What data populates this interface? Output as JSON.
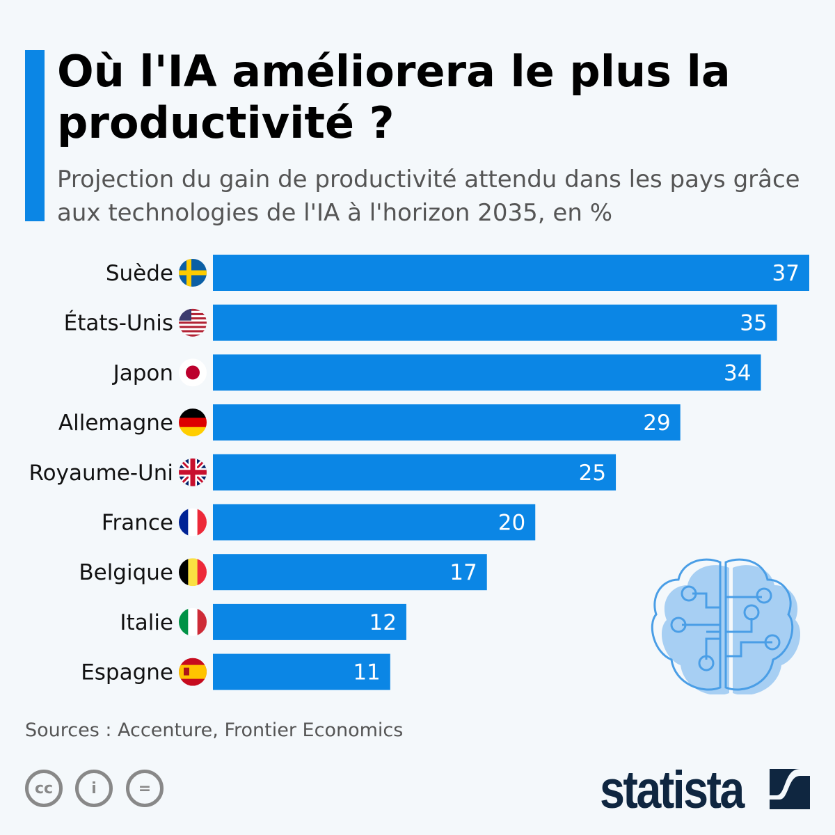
{
  "header": {
    "title": "Où l'IA améliorera le plus la productivité ?",
    "subtitle": "Projection du gain de productivité attendu dans les pays grâce aux technologies de l'IA à l'horizon 2035, en %"
  },
  "chart_data": {
    "type": "bar",
    "orientation": "horizontal",
    "title": "Où l'IA améliorera le plus la productivité ?",
    "subtitle": "Projection du gain de productivité attendu dans les pays grâce aux technologies de l'IA à l'horizon 2035, en %",
    "categories": [
      "Suède",
      "États-Unis",
      "Japon",
      "Allemagne",
      "Royaume-Uni",
      "France",
      "Belgique",
      "Italie",
      "Espagne"
    ],
    "values": [
      37,
      35,
      34,
      29,
      25,
      20,
      17,
      12,
      11
    ],
    "xlim": [
      0,
      37
    ],
    "grid": false,
    "bar_color": "#0b86e5",
    "data_labels": true
  },
  "footer": {
    "source": "Sources : Accenture, Frontier Economics",
    "brand": "statista",
    "license_icons": [
      "cc-icon",
      "attribution-icon",
      "no-derivatives-icon"
    ]
  },
  "colors": {
    "accent": "#0b86e5",
    "brand": "#0f2640",
    "brain": "#4a9ee6"
  }
}
